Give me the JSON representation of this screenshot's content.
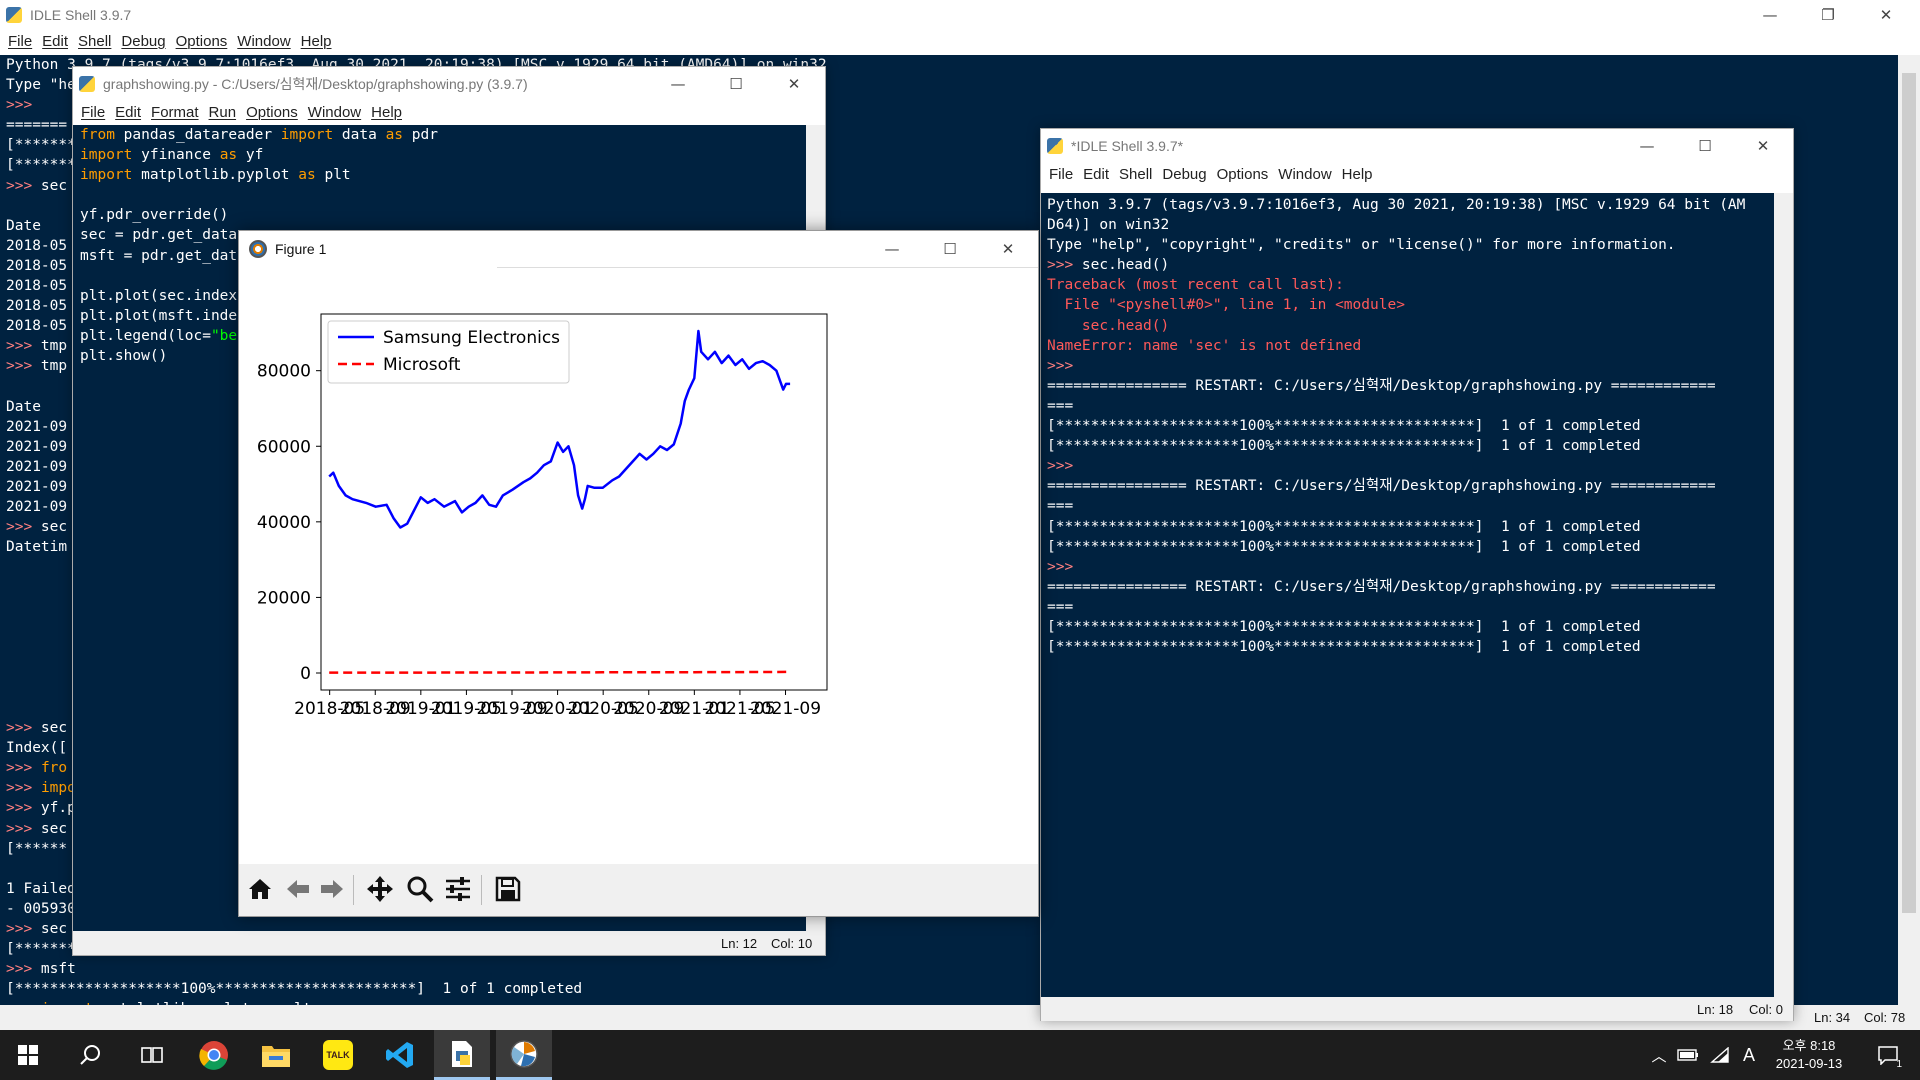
{
  "main_shell": {
    "title": "IDLE Shell 3.9.7",
    "menu": [
      "File",
      "Edit",
      "Shell",
      "Debug",
      "Options",
      "Window",
      "Help"
    ],
    "lines": [
      "Python 3.9.7 (tags/v3.9.7:1016ef3, Aug 30 2021, 20:19:38) [MSC v.1929 64 bit (AMD64)] on win32",
      "Type \"he",
      ">>> ",
      "=======",
      "[*******",
      "[*******",
      ">>> sec",
      "",
      "Date",
      "2018-05",
      "2018-05",
      "2018-05",
      "2018-05",
      "2018-05",
      ">>> tmp",
      ">>> tmp",
      "",
      "Date",
      "2021-09",
      "2021-09",
      "2021-09",
      "2021-09",
      "2021-09",
      ">>> sec",
      "Datetim",
      "",
      "",
      "",
      "",
      "",
      "",
      "",
      "",
      ">>> sec",
      "Index([",
      ">>> fro",
      ">>> impo",
      ">>> yf.p",
      ">>> sec",
      "[******",
      "",
      "1 Failed",
      "- 005930",
      ">>> sec",
      "[*******",
      ">>> msft",
      "[*******************100%***********************]  1 of 1 completed",
      ">>> import matplotlib.pyplot as plt"
    ],
    "status": {
      "ln": "Ln: 34",
      "col": "Col: 78"
    }
  },
  "editor": {
    "title": "graphshowing.py - C:/Users/심혁재/Desktop/graphshowing.py (3.9.7)",
    "menu": [
      "File",
      "Edit",
      "Format",
      "Run",
      "Options",
      "Window",
      "Help"
    ],
    "code": [
      {
        "a": "from",
        "b": " pandas_datareader ",
        "c": "import",
        "d": " data ",
        "e": "as",
        "f": " pdr"
      },
      {
        "a": "import",
        "b": " yfinance ",
        "c": "as",
        "d": " yf",
        "e": "",
        "f": ""
      },
      {
        "a": "import",
        "b": " matplotlib.pyplot ",
        "c": "as",
        "d": " plt",
        "e": "",
        "f": ""
      },
      {
        "a": "",
        "b": "",
        "c": "",
        "d": "",
        "e": "",
        "f": ""
      },
      {
        "a": "",
        "b": "yf.pdr_override()",
        "c": "",
        "d": "",
        "e": "",
        "f": ""
      },
      {
        "a": "",
        "b": "sec = pdr.get_data",
        "c": "",
        "d": "",
        "e": "",
        "f": ""
      },
      {
        "a": "",
        "b": "msft = pdr.get_dat",
        "c": "",
        "d": "",
        "e": "",
        "f": ""
      },
      {
        "a": "",
        "b": "",
        "c": "",
        "d": "",
        "e": "",
        "f": ""
      },
      {
        "a": "",
        "b": "plt.plot(sec.index",
        "c": "",
        "d": "",
        "e": "",
        "f": ""
      },
      {
        "a": "",
        "b": "plt.plot(msft.inde",
        "c": "",
        "d": "",
        "e": "",
        "f": ""
      },
      {
        "a": "",
        "b": "plt.legend(loc=",
        "c": "\"be",
        "d": "",
        "e": "",
        "f": ""
      },
      {
        "a": "",
        "b": "plt.show()",
        "c": "",
        "d": "",
        "e": "",
        "f": ""
      }
    ],
    "status": {
      "ln": "Ln: 12",
      "col": "Col: 10"
    }
  },
  "shell2": {
    "title": "*IDLE Shell 3.9.7*",
    "menu": [
      "File",
      "Edit",
      "Shell",
      "Debug",
      "Options",
      "Window",
      "Help"
    ],
    "lines": [
      {
        "t": "Python 3.9.7 (tags/v3.9.7:1016ef3, Aug 30 2021, 20:19:38) [MSC v.1929 64 bit (AM",
        "k": "out"
      },
      {
        "t": "D64)] on win32",
        "k": "out"
      },
      {
        "t": "Type \"help\", \"copyright\", \"credits\" or \"license()\" for more information.",
        "k": "out"
      },
      {
        "t": ">>> sec.head()",
        "k": "cmd"
      },
      {
        "t": "Traceback (most recent call last):",
        "k": "err"
      },
      {
        "t": "  File \"<pyshell#0>\", line 1, in <module>",
        "k": "err"
      },
      {
        "t": "    sec.head()",
        "k": "err"
      },
      {
        "t": "NameError: name 'sec' is not defined",
        "k": "err"
      },
      {
        "t": ">>>",
        "k": "prompt"
      },
      {
        "t": "================ RESTART: C:/Users/심혁재/Desktop/graphshowing.py ============",
        "k": "out"
      },
      {
        "t": "===",
        "k": "out"
      },
      {
        "t": "[*********************100%***********************]  1 of 1 completed",
        "k": "out"
      },
      {
        "t": "[*********************100%***********************]  1 of 1 completed",
        "k": "out"
      },
      {
        "t": ">>>",
        "k": "prompt"
      },
      {
        "t": "================ RESTART: C:/Users/심혁재/Desktop/graphshowing.py ============",
        "k": "out"
      },
      {
        "t": "===",
        "k": "out"
      },
      {
        "t": "[*********************100%***********************]  1 of 1 completed",
        "k": "out"
      },
      {
        "t": "[*********************100%***********************]  1 of 1 completed",
        "k": "out"
      },
      {
        "t": ">>>",
        "k": "prompt"
      },
      {
        "t": "================ RESTART: C:/Users/심혁재/Desktop/graphshowing.py ============",
        "k": "out"
      },
      {
        "t": "===",
        "k": "out"
      },
      {
        "t": "[*********************100%***********************]  1 of 1 completed",
        "k": "out"
      },
      {
        "t": "[*********************100%***********************]  1 of 1 completed",
        "k": "out"
      }
    ],
    "status": {
      "ln": "Ln: 18",
      "col": "Col: 0"
    }
  },
  "figure": {
    "title": "Figure 1",
    "toolbar": [
      "home-icon",
      "back-icon",
      "forward-icon",
      "pan-icon",
      "zoom-icon",
      "configure-icon",
      "save-icon"
    ]
  },
  "chart_data": {
    "type": "line",
    "title": "",
    "xlabel": "",
    "ylabel": "",
    "x_ticks": [
      "2018-05",
      "2018-09",
      "2019-01",
      "2019-05",
      "2019-09",
      "2020-01",
      "2020-05",
      "2020-09",
      "2021-01",
      "2021-05",
      "2021-09"
    ],
    "y_ticks": [
      0,
      20000,
      40000,
      60000,
      80000
    ],
    "ylim": [
      -4500,
      95000
    ],
    "xlim": [
      2018.27,
      2021.97
    ],
    "legend_position": "upper left",
    "grid": false,
    "series": [
      {
        "name": "Samsung Electronics",
        "color": "#0000ff",
        "style": "solid",
        "x": [
          2018.33,
          2018.36,
          2018.4,
          2018.45,
          2018.5,
          2018.55,
          2018.6,
          2018.67,
          2018.75,
          2018.8,
          2018.85,
          2018.9,
          2018.95,
          2019.0,
          2019.05,
          2019.1,
          2019.17,
          2019.25,
          2019.3,
          2019.35,
          2019.4,
          2019.45,
          2019.5,
          2019.55,
          2019.6,
          2019.67,
          2019.75,
          2019.8,
          2019.85,
          2019.9,
          2019.95,
          2020.0,
          2020.04,
          2020.08,
          2020.12,
          2020.15,
          2020.18,
          2020.2,
          2020.22,
          2020.27,
          2020.33,
          2020.4,
          2020.45,
          2020.5,
          2020.55,
          2020.6,
          2020.65,
          2020.7,
          2020.75,
          2020.8,
          2020.85,
          2020.9,
          2020.93,
          2020.96,
          2021.0,
          2021.03,
          2021.05,
          2021.1,
          2021.15,
          2021.2,
          2021.25,
          2021.3,
          2021.35,
          2021.4,
          2021.45,
          2021.5,
          2021.55,
          2021.6,
          2021.65,
          2021.67,
          2021.7
        ],
        "y": [
          52000,
          53000,
          49500,
          47000,
          46000,
          45500,
          45000,
          44000,
          44500,
          41000,
          38500,
          39500,
          43000,
          46500,
          45000,
          46000,
          44000,
          45500,
          42500,
          44000,
          45000,
          47000,
          44500,
          44000,
          47000,
          48500,
          50500,
          51500,
          53000,
          55000,
          56000,
          61000,
          58500,
          60000,
          55000,
          47000,
          43500,
          46000,
          49500,
          49000,
          49000,
          51000,
          52000,
          54000,
          56000,
          58000,
          56500,
          58000,
          60000,
          59000,
          60500,
          66000,
          72000,
          75000,
          78000,
          90500,
          85000,
          83000,
          85000,
          82000,
          84000,
          81500,
          83000,
          80500,
          82000,
          82500,
          81500,
          80000,
          75000,
          76500,
          76500
        ]
      },
      {
        "name": "Microsoft",
        "color": "#ff0000",
        "style": "dashed",
        "x": [
          2018.33,
          2018.67,
          2019.0,
          2019.33,
          2019.67,
          2020.0,
          2020.33,
          2020.67,
          2021.0,
          2021.33,
          2021.7
        ],
        "y": [
          95,
          112,
          101,
          125,
          137,
          158,
          175,
          205,
          222,
          250,
          300
        ]
      }
    ]
  },
  "taskbar": {
    "icons": [
      "windows-start-icon",
      "search-icon",
      "task-view-icon",
      "chrome-icon",
      "file-explorer-icon",
      "kakaotalk-icon",
      "vscode-icon",
      "idle-icon",
      "matplotlib-figure-icon"
    ],
    "kakao_label": "TALK",
    "time": "오후 8:18",
    "date": "2021-09-13",
    "ime": "A",
    "notification_count": "1"
  }
}
